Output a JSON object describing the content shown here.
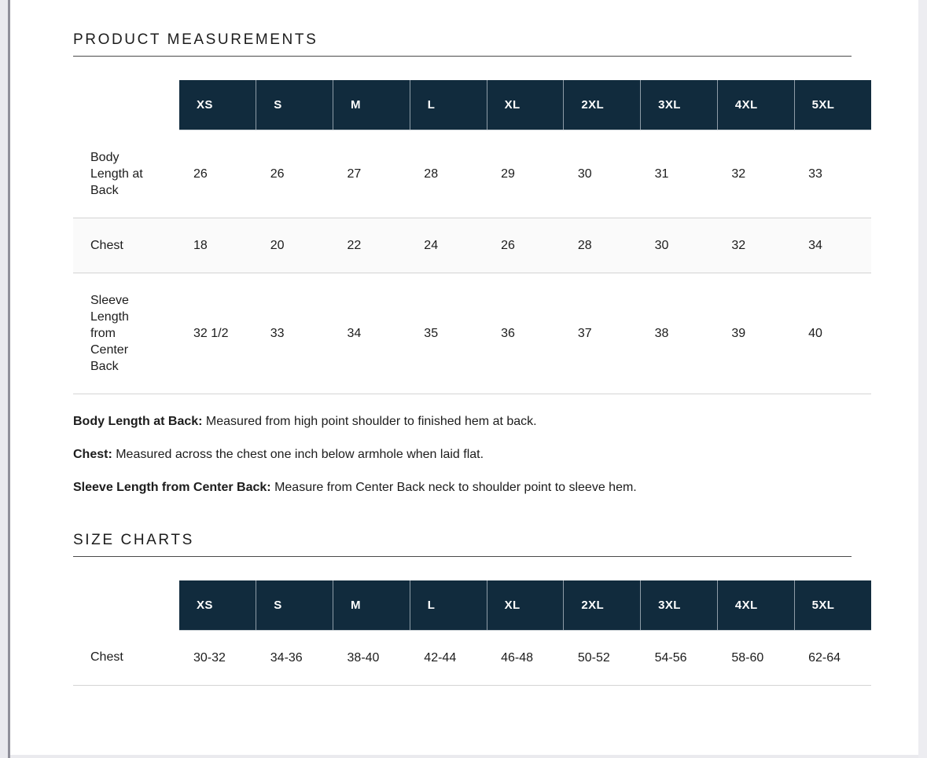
{
  "colors": {
    "header_bg": "#112b3d",
    "header_text": "#ffffff",
    "row_stripe": "#fafafa",
    "row_border": "#d4d4d4",
    "heading_underline": "#4a4a4a",
    "text": "#1c1c1c"
  },
  "product_measurements": {
    "title": "PRODUCT MEASUREMENTS",
    "table": {
      "columns": [
        "XS",
        "S",
        "M",
        "L",
        "XL",
        "2XL",
        "3XL",
        "4XL",
        "5XL"
      ],
      "rows": [
        {
          "label": "Body\nLength at\nBack",
          "values": [
            "26",
            "26",
            "27",
            "28",
            "29",
            "30",
            "31",
            "32",
            "33"
          ]
        },
        {
          "label": "Chest",
          "values": [
            "18",
            "20",
            "22",
            "24",
            "26",
            "28",
            "30",
            "32",
            "34"
          ]
        },
        {
          "label": "Sleeve\nLength\nfrom\nCenter\nBack",
          "values": [
            "32 1/2",
            "33",
            "34",
            "35",
            "36",
            "37",
            "38",
            "39",
            "40"
          ]
        }
      ]
    },
    "definitions": [
      {
        "term": "Body Length at Back:",
        "desc": "Measured from high point shoulder to finished hem at back."
      },
      {
        "term": "Chest:",
        "desc": "Measured across the chest one inch below armhole when laid flat."
      },
      {
        "term": "Sleeve Length from Center Back:",
        "desc": "Measure from Center Back neck to shoulder point to sleeve hem."
      }
    ]
  },
  "size_charts": {
    "title": "SIZE CHARTS",
    "table": {
      "columns": [
        "XS",
        "S",
        "M",
        "L",
        "XL",
        "2XL",
        "3XL",
        "4XL",
        "5XL"
      ],
      "rows": [
        {
          "label": "Chest",
          "values": [
            "30-32",
            "34-36",
            "38-40",
            "42-44",
            "46-48",
            "50-52",
            "54-56",
            "58-60",
            "62-64"
          ]
        }
      ]
    }
  }
}
